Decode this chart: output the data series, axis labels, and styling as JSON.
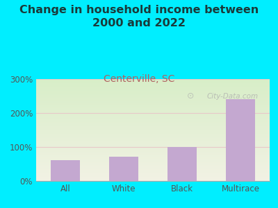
{
  "title": "Change in household income between\n2000 and 2022",
  "subtitle": "Centerville, SC",
  "categories": [
    "All",
    "White",
    "Black",
    "Multirace"
  ],
  "values": [
    62,
    72,
    100,
    240
  ],
  "bar_color": "#c4a8d0",
  "title_fontsize": 11.5,
  "subtitle_fontsize": 10,
  "subtitle_color": "#b06060",
  "title_color": "#1a3a3a",
  "tick_label_color": "#555555",
  "bg_outer": "#00eeff",
  "ylim": [
    0,
    300
  ],
  "yticks": [
    0,
    100,
    200,
    300
  ],
  "ytick_labels": [
    "0%",
    "100%",
    "200%",
    "300%"
  ],
  "watermark": "City-Data.com",
  "plot_bg_color_topleft": "#d8eec8",
  "plot_bg_color_bottomright": "#f0f0e0",
  "grid_color": "#e8c8c8",
  "bottom_spine_color": "#aaaaaa"
}
